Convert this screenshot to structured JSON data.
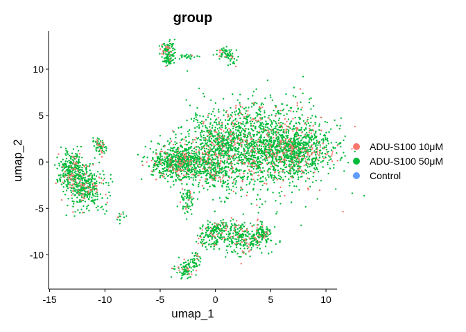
{
  "chart_data": {
    "type": "scatter",
    "title": "group",
    "xlabel": "umap_1",
    "ylabel": "umap_2",
    "xlim": [
      -15.1,
      11.0
    ],
    "ylim": [
      -13.7,
      14.1
    ],
    "xticks": [
      -15,
      -10,
      -5,
      0,
      5,
      10
    ],
    "yticks": [
      -10,
      -5,
      0,
      5,
      10
    ],
    "grid": false,
    "legend_position": "right",
    "series": [
      {
        "name": "ADU-S100 10μM",
        "color": "#F8766D"
      },
      {
        "name": "ADU-S100 50μM",
        "color": "#00BA38"
      },
      {
        "name": "Control",
        "color": "#619CFF"
      }
    ],
    "clusters": [
      {
        "cx": 3.6,
        "cy": 1.6,
        "sx": 3.1,
        "sy": 2.3,
        "n": 1900
      },
      {
        "cx": 7.5,
        "cy": 1.2,
        "sx": 1.4,
        "sy": 1.3,
        "n": 500
      },
      {
        "cx": 0.3,
        "cy": 2.2,
        "sx": 0.8,
        "sy": 1.0,
        "n": 160
      },
      {
        "cx": -3.4,
        "cy": 0.0,
        "sx": 1.2,
        "sy": 0.9,
        "n": 650
      },
      {
        "cx": -0.6,
        "cy": -0.6,
        "sx": 0.9,
        "sy": 1.0,
        "n": 220
      },
      {
        "cx": -2.5,
        "cy": -4.1,
        "sx": 0.3,
        "sy": 0.7,
        "n": 70
      },
      {
        "cx": -12.9,
        "cy": -0.9,
        "sx": 0.6,
        "sy": 1.1,
        "n": 300
      },
      {
        "cx": -11.7,
        "cy": -2.8,
        "sx": 0.8,
        "sy": 1.1,
        "n": 320
      },
      {
        "cx": -10.5,
        "cy": 1.6,
        "sx": 0.25,
        "sy": 0.5,
        "n": 70
      },
      {
        "cx": -8.5,
        "cy": -6.0,
        "sx": 0.25,
        "sy": 0.3,
        "n": 14
      },
      {
        "cx": -4.3,
        "cy": 12.1,
        "sx": 0.3,
        "sy": 0.5,
        "n": 90
      },
      {
        "cx": -4.3,
        "cy": 11.0,
        "sx": 0.25,
        "sy": 0.3,
        "n": 40
      },
      {
        "cx": -2.4,
        "cy": 11.3,
        "sx": 0.4,
        "sy": 0.15,
        "n": 25
      },
      {
        "cx": 0.9,
        "cy": 11.7,
        "sx": 0.4,
        "sy": 0.25,
        "n": 60
      },
      {
        "cx": 1.5,
        "cy": 11.0,
        "sx": 0.3,
        "sy": 0.3,
        "n": 15
      },
      {
        "cx": -0.1,
        "cy": -8.0,
        "sx": 0.7,
        "sy": 0.7,
        "n": 160
      },
      {
        "cx": 0.8,
        "cy": -7.0,
        "sx": 0.8,
        "sy": 0.3,
        "n": 70
      },
      {
        "cx": 2.7,
        "cy": -8.3,
        "sx": 1.1,
        "sy": 0.8,
        "n": 260
      },
      {
        "cx": 4.3,
        "cy": -7.6,
        "sx": 0.4,
        "sy": 0.5,
        "n": 70
      },
      {
        "cx": -2.6,
        "cy": -11.6,
        "sx": 0.5,
        "sy": 0.6,
        "n": 90
      },
      {
        "cx": -1.7,
        "cy": -10.4,
        "sx": 0.25,
        "sy": 0.5,
        "n": 25
      }
    ]
  }
}
